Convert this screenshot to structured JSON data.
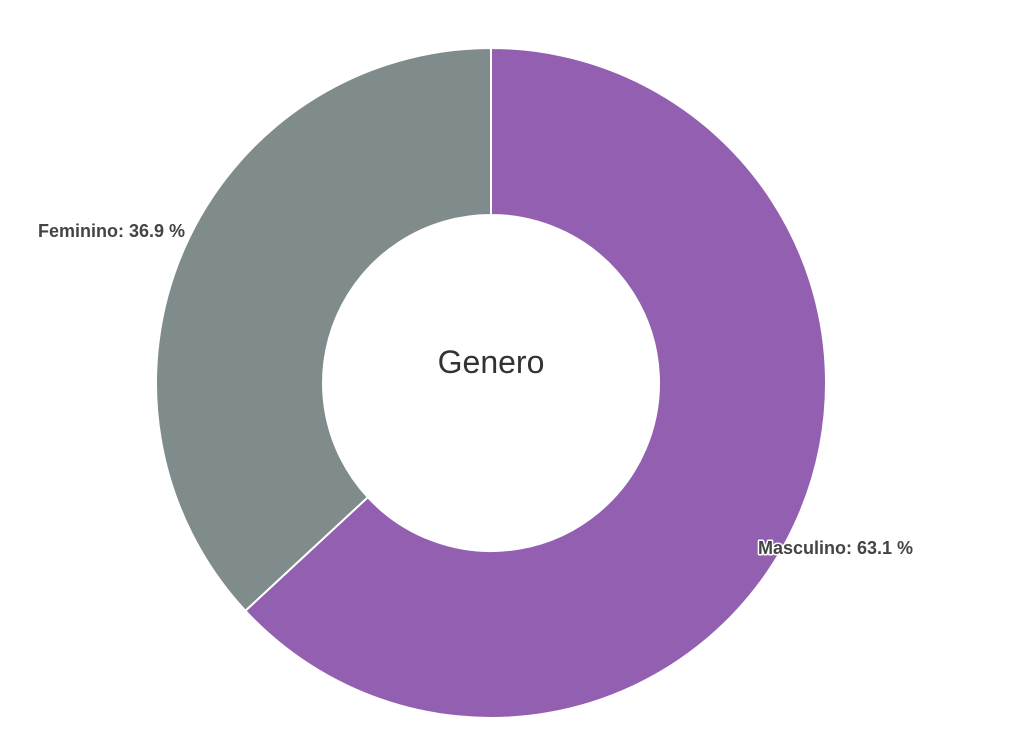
{
  "chart_data": {
    "type": "pie",
    "title": "Genero",
    "donut": true,
    "slices": [
      {
        "name": "Masculino",
        "value": 63.1,
        "label": "Masculino: 63.1 %",
        "color": "#925fb1"
      },
      {
        "name": "Feminino",
        "value": 36.9,
        "label": "Feminino: 36.9 %",
        "color": "#7f8c8b"
      }
    ],
    "legend": "none"
  }
}
